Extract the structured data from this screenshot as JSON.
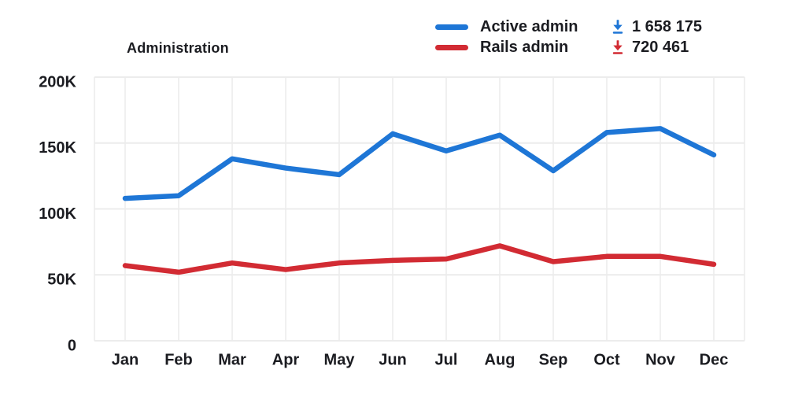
{
  "title": "Administration",
  "legend": {
    "items": [
      {
        "label": "Active admin",
        "downloads": "1 658 175",
        "color": "#1e76d6",
        "icon": "download-icon"
      },
      {
        "label": "Rails admin",
        "downloads": "720 461",
        "color": "#d22b33",
        "icon": "download-icon"
      }
    ]
  },
  "chart_data": {
    "type": "line",
    "title": "Administration",
    "categories": [
      "Jan",
      "Feb",
      "Mar",
      "Apr",
      "May",
      "Jun",
      "Jul",
      "Aug",
      "Sep",
      "Oct",
      "Nov",
      "Dec"
    ],
    "series": [
      {
        "name": "Active admin",
        "color": "#1e76d6",
        "total_downloads": "1 658 175",
        "values": [
          108000,
          110000,
          138000,
          131000,
          126000,
          157000,
          144000,
          156000,
          129000,
          158000,
          161000,
          141000
        ]
      },
      {
        "name": "Rails admin",
        "color": "#d22b33",
        "total_downloads": "720 461",
        "values": [
          57000,
          52000,
          59000,
          54000,
          59000,
          61000,
          62000,
          72000,
          60000,
          64000,
          64000,
          58000
        ]
      }
    ],
    "xlabel": "",
    "ylabel": "",
    "ylim": [
      0,
      200000
    ],
    "yticks": [
      {
        "value": 200000,
        "label": "200K"
      },
      {
        "value": 150000,
        "label": "150K"
      },
      {
        "value": 100000,
        "label": "100K"
      },
      {
        "value": 50000,
        "label": "50K"
      },
      {
        "value": 0,
        "label": "0"
      }
    ],
    "grid": true,
    "gridline_color": "#ececec",
    "legend_position": "top-right"
  }
}
